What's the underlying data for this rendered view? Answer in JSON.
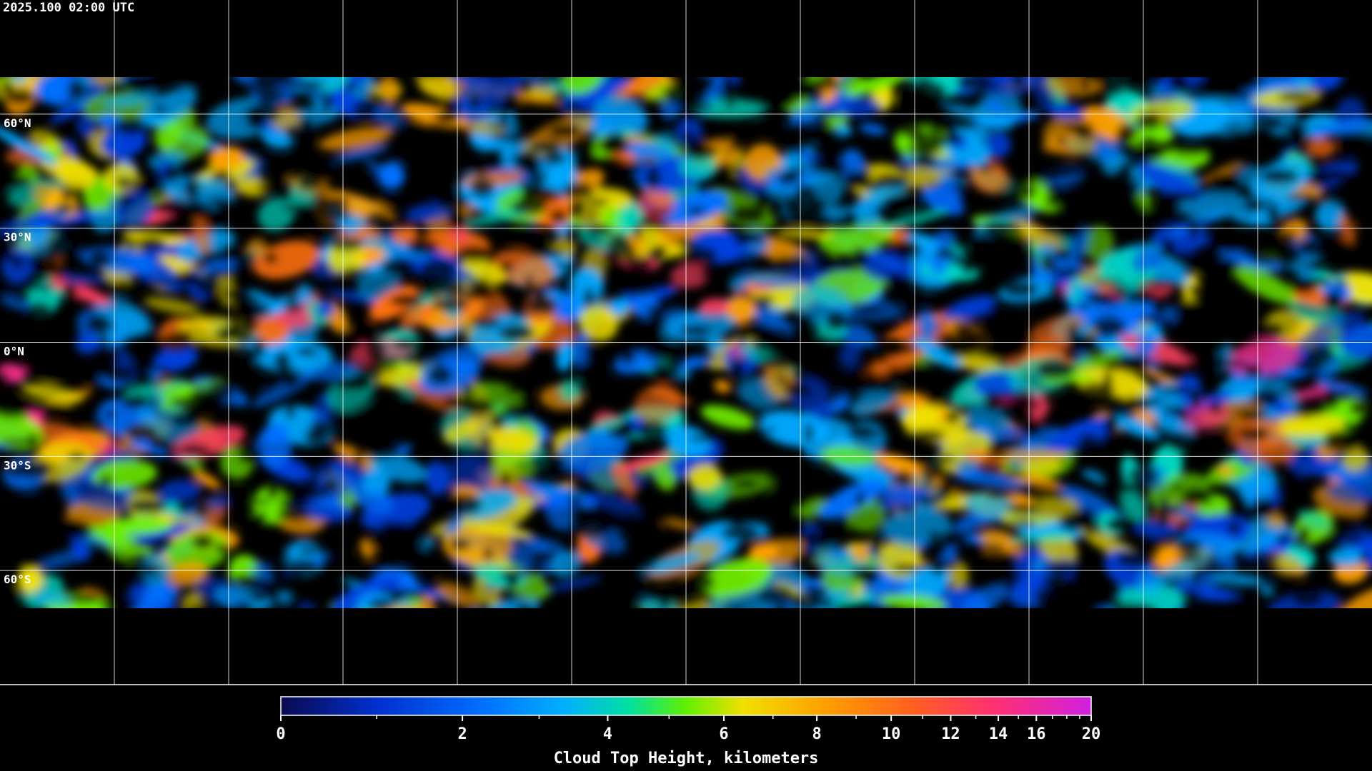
{
  "header": {
    "title": "2025.100 02:00 UTC"
  },
  "map": {
    "lat_lines": [
      {
        "value": 60,
        "label": "60°N"
      },
      {
        "value": 30,
        "label": "30°N"
      },
      {
        "value": 0,
        "label": "0°N"
      },
      {
        "value": -30,
        "label": "30°S"
      },
      {
        "value": -60,
        "label": "60°S"
      }
    ],
    "lon_lines": [
      -150,
      -120,
      -90,
      -60,
      -30,
      0,
      30,
      60,
      90,
      120,
      150
    ],
    "lat_range": [
      90,
      -90
    ],
    "lon_range": [
      -180,
      180
    ]
  },
  "colorbar": {
    "label": "Cloud Top Height, kilometers",
    "range": [
      0,
      20
    ],
    "ticks": [
      0,
      2,
      4,
      6,
      8,
      10,
      12,
      14,
      16,
      20
    ],
    "minor_ticks": [
      1,
      3,
      5,
      7,
      9,
      11,
      13,
      15,
      17,
      18,
      19
    ]
  }
}
